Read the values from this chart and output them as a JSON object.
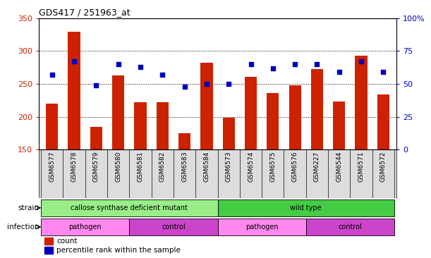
{
  "title": "GDS417 / 251963_at",
  "samples": [
    "GSM6577",
    "GSM6578",
    "GSM6579",
    "GSM6580",
    "GSM6581",
    "GSM6582",
    "GSM6583",
    "GSM6584",
    "GSM6573",
    "GSM6574",
    "GSM6575",
    "GSM6576",
    "GSM6227",
    "GSM6544",
    "GSM6571",
    "GSM6572"
  ],
  "counts": [
    220,
    329,
    185,
    263,
    222,
    222,
    175,
    282,
    199,
    261,
    236,
    248,
    272,
    223,
    293,
    234
  ],
  "percentiles": [
    57,
    67,
    49,
    65,
    63,
    57,
    48,
    50,
    50,
    65,
    62,
    65,
    65,
    59,
    67,
    59
  ],
  "ylim_left": [
    150,
    350
  ],
  "ylim_right": [
    0,
    100
  ],
  "yticks_left": [
    150,
    200,
    250,
    300,
    350
  ],
  "yticks_right": [
    0,
    25,
    50,
    75,
    100
  ],
  "yticklabels_right": [
    "0",
    "25",
    "50",
    "75",
    "100%"
  ],
  "bar_color": "#cc2200",
  "dot_color": "#0000bb",
  "grid_color": "#000000",
  "strain_groups": [
    {
      "label": "callose synthase deficient mutant",
      "start": 0,
      "end": 8,
      "color": "#99ee88"
    },
    {
      "label": "wild type",
      "start": 8,
      "end": 16,
      "color": "#44cc44"
    }
  ],
  "infection_groups": [
    {
      "label": "pathogen",
      "start": 0,
      "end": 4,
      "color": "#ff88ee"
    },
    {
      "label": "control",
      "start": 4,
      "end": 8,
      "color": "#cc44cc"
    },
    {
      "label": "pathogen",
      "start": 8,
      "end": 12,
      "color": "#ff88ee"
    },
    {
      "label": "control",
      "start": 12,
      "end": 16,
      "color": "#cc44cc"
    }
  ],
  "tick_label_color_left": "#cc2200",
  "tick_label_color_right": "#0000bb",
  "xtick_bg_color": "#dddddd"
}
